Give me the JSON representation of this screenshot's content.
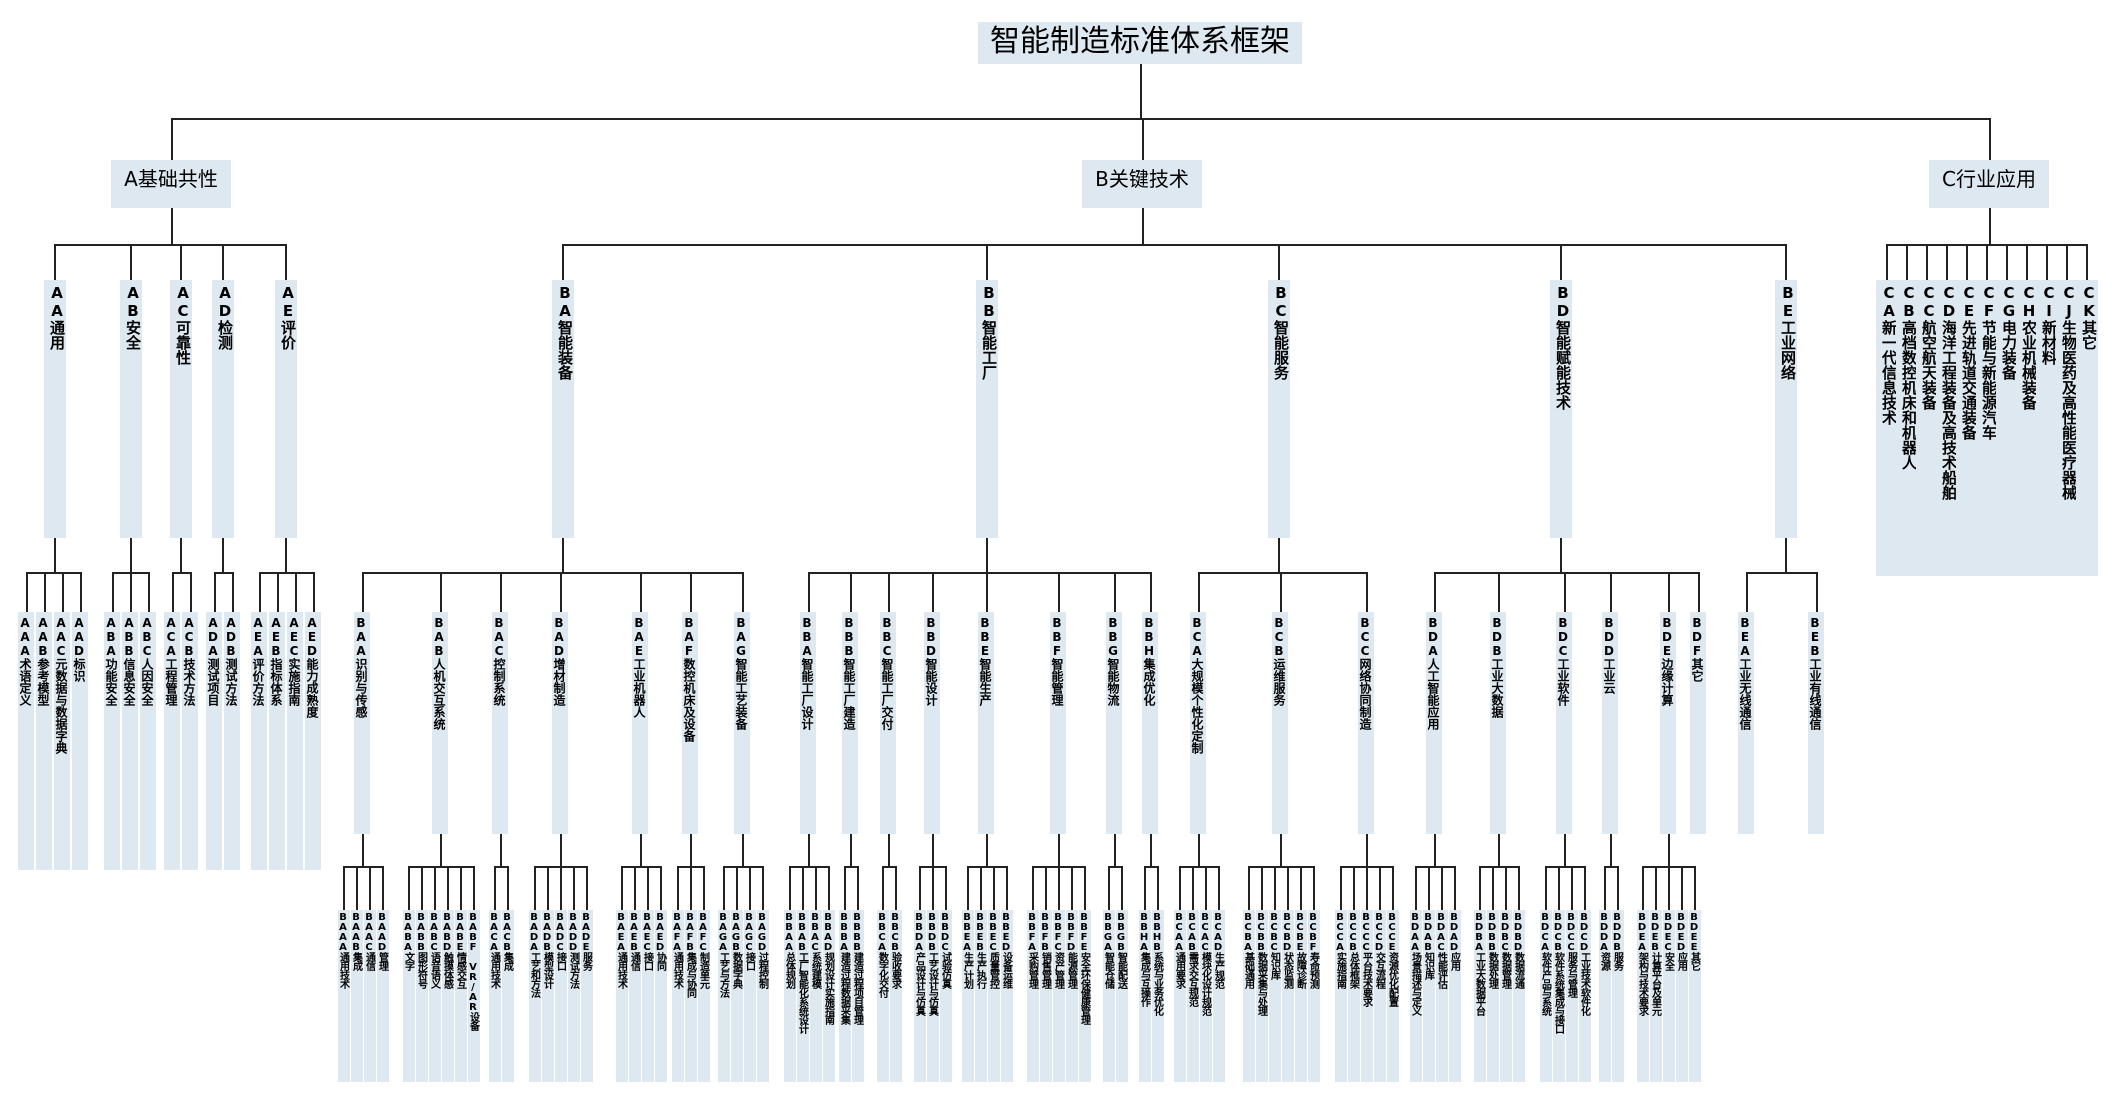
{
  "title": "智能制造标准体系框架",
  "categories": [
    {
      "id": "A",
      "label": "A基础共性",
      "children": [
        {
          "label": "AA通用",
          "children": [
            {
              "label": "AAA术语定义",
              "children": []
            },
            {
              "label": "AAB参考模型",
              "children": []
            },
            {
              "label": "AAC元数据与数据字典",
              "children": []
            },
            {
              "label": "AAD标识",
              "children": []
            }
          ]
        },
        {
          "label": "AB安全",
          "children": [
            {
              "label": "ABA功能安全",
              "children": []
            },
            {
              "label": "ABB信息安全",
              "children": []
            },
            {
              "label": "ABC人因安全",
              "children": []
            }
          ]
        },
        {
          "label": "AC可靠性",
          "children": [
            {
              "label": "ACA工程管理",
              "children": []
            },
            {
              "label": "ACB技术方法",
              "children": []
            }
          ]
        },
        {
          "label": "AD检测",
          "children": [
            {
              "label": "ADA测试项目",
              "children": []
            },
            {
              "label": "ADB测试方法",
              "children": []
            }
          ]
        },
        {
          "label": "AE评价",
          "children": [
            {
              "label": "AEA评价方法",
              "children": []
            },
            {
              "label": "AEB指标体系",
              "children": []
            },
            {
              "label": "AEC实施指南",
              "children": []
            },
            {
              "label": "AED能力成熟度",
              "children": []
            }
          ]
        }
      ]
    },
    {
      "id": "B",
      "label": "B关键技术",
      "children": [
        {
          "label": "BA智能装备",
          "children": [
            {
              "label": "BAA识别与传感",
              "children": [
                {
                  "label": "BAAA通用技术"
                },
                {
                  "label": "BAAB集成"
                },
                {
                  "label": "BAAC通信"
                },
                {
                  "label": "BAAD管理"
                }
              ]
            },
            {
              "label": "BAB人机交互系统",
              "children": [
                {
                  "label": "BABA文字"
                },
                {
                  "label": "BABB图形符号"
                },
                {
                  "label": "BABC语音语义"
                },
                {
                  "label": "BABD触摸体感"
                },
                {
                  "label": "BABE情感交互"
                },
                {
                  "label": "BABF VR/AR设备"
                }
              ]
            },
            {
              "label": "BAC控制系统",
              "children": [
                {
                  "label": "BACA通用技术"
                },
                {
                  "label": "BACB集成"
                }
              ]
            },
            {
              "label": "BAD增材制造",
              "children": [
                {
                  "label": "BADA工艺和方法"
                },
                {
                  "label": "BADB模型设计"
                },
                {
                  "label": "BADC接口"
                },
                {
                  "label": "BADD测试方法"
                },
                {
                  "label": "BADE服务"
                }
              ]
            },
            {
              "label": "BAE工业机器人",
              "children": [
                {
                  "label": "BAEA通用技术"
                },
                {
                  "label": "BAEB通信"
                },
                {
                  "label": "BAEC接口"
                },
                {
                  "label": "BAED协同"
                }
              ]
            },
            {
              "label": "BAF数控机床及设备",
              "children": [
                {
                  "label": "BAFA通用技术"
                },
                {
                  "label": "BAFB集成与协同"
                },
                {
                  "label": "BAFC制造单元"
                }
              ]
            },
            {
              "label": "BAG智能工艺装备",
              "children": [
                {
                  "label": "BAGA工艺与方法"
                },
                {
                  "label": "BAGB数据字典"
                },
                {
                  "label": "BAGC接口"
                },
                {
                  "label": "BAGD过程控制"
                }
              ]
            }
          ]
        },
        {
          "label": "BB智能工厂",
          "children": [
            {
              "label": "BBA智能工厂设计",
              "children": [
                {
                  "label": "BBAA总体规划"
                },
                {
                  "label": "BBAB工厂智能化系统设计"
                },
                {
                  "label": "BBAC系统建模"
                },
                {
                  "label": "BBAD规划设计实施指南"
                }
              ]
            },
            {
              "label": "BBB智能工厂建造",
              "children": [
                {
                  "label": "BBBA建造过程数据采集"
                },
                {
                  "label": "BBBB建造过程项目管理"
                }
              ]
            },
            {
              "label": "BBC智能工厂交付",
              "children": [
                {
                  "label": "BBCA数字化交付"
                },
                {
                  "label": "BBCB验收要求"
                }
              ]
            },
            {
              "label": "BBD智能设计",
              "children": [
                {
                  "label": "BBDA产品设计与仿真"
                },
                {
                  "label": "BBDB工艺设计与仿真"
                },
                {
                  "label": "BBDC试验仿真"
                }
              ]
            },
            {
              "label": "BBE智能生产",
              "children": [
                {
                  "label": "BBEA生产计划"
                },
                {
                  "label": "BBEB生产执行"
                },
                {
                  "label": "BBEC质量管控"
                },
                {
                  "label": "BBED设备运维"
                }
              ]
            },
            {
              "label": "BBF智能管理",
              "children": [
                {
                  "label": "BBFA采购管理"
                },
                {
                  "label": "BBFB销售管理"
                },
                {
                  "label": "BBFC资产管理"
                },
                {
                  "label": "BBFD能源管理"
                },
                {
                  "label": "BBFE安全环保健康管理"
                }
              ]
            },
            {
              "label": "BBG智能物流",
              "children": [
                {
                  "label": "BBGA智能仓储"
                },
                {
                  "label": "BBGB智能配送"
                }
              ]
            },
            {
              "label": "BBH集成优化",
              "children": [
                {
                  "label": "BBHA集成与互操作"
                },
                {
                  "label": "BBHB系统与业务优化"
                }
              ]
            }
          ]
        },
        {
          "label": "BC智能服务",
          "children": [
            {
              "label": "BCA大规模个性化定制",
              "children": [
                {
                  "label": "BCAA通用要求"
                },
                {
                  "label": "BCAB需求交互规范"
                },
                {
                  "label": "BCAC模块化设计规范"
                },
                {
                  "label": "BCAD生产规范"
                }
              ]
            },
            {
              "label": "BCB运维服务",
              "children": [
                {
                  "label": "BCBA基础通用"
                },
                {
                  "label": "BCBB数据采集与处理"
                },
                {
                  "label": "BCBC知识库"
                },
                {
                  "label": "BCBD状态监测"
                },
                {
                  "label": "BCBE故障诊断"
                },
                {
                  "label": "BCBF寿命预测"
                }
              ]
            },
            {
              "label": "BCC网络协同制造",
              "children": [
                {
                  "label": "BCCA实施指南"
                },
                {
                  "label": "BCCB总体框架"
                },
                {
                  "label": "BCCC平台技术要求"
                },
                {
                  "label": "BCCD交互流程"
                },
                {
                  "label": "BCCE资源优化配置"
                }
              ]
            }
          ]
        },
        {
          "label": "BD智能赋能技术",
          "children": [
            {
              "label": "BDA人工智能应用",
              "children": [
                {
                  "label": "BDAA场景描述与定义"
                },
                {
                  "label": "BDAB知识库"
                },
                {
                  "label": "BDAC性能评估"
                },
                {
                  "label": "BDAD应用"
                }
              ]
            },
            {
              "label": "BDB工业大数据",
              "children": [
                {
                  "label": "BDBA工业大数据平台"
                },
                {
                  "label": "BDBB数据处理"
                },
                {
                  "label": "BDBC数据管理"
                },
                {
                  "label": "BDBD数据流通"
                }
              ]
            },
            {
              "label": "BDC工业软件",
              "children": [
                {
                  "label": "BDCA软件产品与系统"
                },
                {
                  "label": "BDCB软件系统集成与接口"
                },
                {
                  "label": "BDCC服务与管理"
                },
                {
                  "label": "BDCD工业技术软件化"
                }
              ]
            },
            {
              "label": "BDD工业云",
              "children": [
                {
                  "label": "BDDA资源"
                },
                {
                  "label": "BDDB服务"
                }
              ]
            },
            {
              "label": "BDE边缘计算",
              "children": [
                {
                  "label": "BDEA架构与技术要求"
                },
                {
                  "label": "BDEB计算平台及单元"
                },
                {
                  "label": "BDEC安全"
                },
                {
                  "label": "BDED应用"
                },
                {
                  "label": "BDEE其它"
                }
              ]
            },
            {
              "label": "BDF其它",
              "children": []
            }
          ]
        },
        {
          "label": "BE工业网络",
          "children": [
            {
              "label": "BEA工业无线通信",
              "children": []
            },
            {
              "label": "BEB工业有线通信",
              "children": []
            }
          ]
        }
      ]
    },
    {
      "id": "C",
      "label": "C行业应用",
      "children": [
        {
          "label": "CA新一代信息技术",
          "children": []
        },
        {
          "label": "CB高档数控机床和机器人",
          "children": []
        },
        {
          "label": "CC航空航天装备",
          "children": []
        },
        {
          "label": "CD海洋工程装备及高技术船舶",
          "children": []
        },
        {
          "label": "CE先进轨道交通装备",
          "children": []
        },
        {
          "label": "CF节能与新能源汽车",
          "children": []
        },
        {
          "label": "CG电力装备",
          "children": []
        },
        {
          "label": "CH农业机械装备",
          "children": []
        },
        {
          "label": "CI新材料",
          "children": []
        },
        {
          "label": "CJ生物医药及高性能医疗器械",
          "children": []
        },
        {
          "label": "CK其它",
          "children": []
        }
      ]
    }
  ]
}
